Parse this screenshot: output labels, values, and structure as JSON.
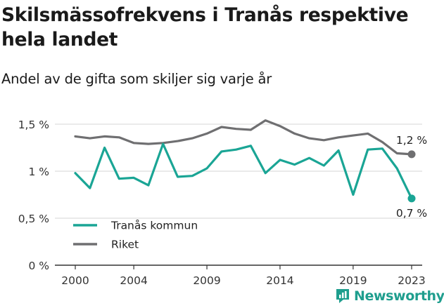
{
  "title": "Skilsmässofrekvens i Tranås respektive hela landet",
  "subtitle": "Andel av de gifta som skiljer sig varje år",
  "logo_text": "Newsworthy",
  "colors": {
    "tranas": "#1aa595",
    "riket": "#6f6f71",
    "grid": "#d4d4d4",
    "axis": "#333333"
  },
  "chart_data": {
    "type": "line",
    "title": "Skilsmässofrekvens i Tranås respektive hela landet",
    "subtitle": "Andel av de gifta som skiljer sig varje år",
    "xlabel": "",
    "ylabel": "",
    "x": [
      2000,
      2001,
      2002,
      2003,
      2004,
      2005,
      2006,
      2007,
      2008,
      2009,
      2010,
      2011,
      2012,
      2013,
      2014,
      2015,
      2016,
      2017,
      2018,
      2019,
      2020,
      2021,
      2022,
      2023
    ],
    "xticks": [
      "2000",
      "2004",
      "2009",
      "2014",
      "2019",
      "2023"
    ],
    "yticks": [
      0,
      0.5,
      1,
      1.5
    ],
    "ytick_labels": [
      "0 %",
      "0,5 %",
      "1 %",
      "1,5 %"
    ],
    "ylim": [
      0,
      1.5
    ],
    "grid": "horizontal",
    "legend_position": "bottom-left",
    "series": [
      {
        "name": "Tranås kommun",
        "color": "#1aa595",
        "values": [
          0.98,
          0.82,
          1.25,
          0.92,
          0.93,
          0.85,
          1.29,
          0.94,
          0.95,
          1.03,
          1.21,
          1.23,
          1.27,
          0.98,
          1.12,
          1.07,
          1.14,
          1.06,
          1.22,
          0.75,
          1.23,
          1.24,
          1.03,
          0.71
        ],
        "end_label": "0,7 %"
      },
      {
        "name": "Riket",
        "color": "#6f6f71",
        "values": [
          1.37,
          1.35,
          1.37,
          1.36,
          1.3,
          1.29,
          1.3,
          1.32,
          1.35,
          1.4,
          1.47,
          1.45,
          1.44,
          1.54,
          1.48,
          1.4,
          1.35,
          1.33,
          1.36,
          1.38,
          1.4,
          1.31,
          1.19,
          1.18
        ],
        "end_label": "1,2 %"
      }
    ]
  }
}
